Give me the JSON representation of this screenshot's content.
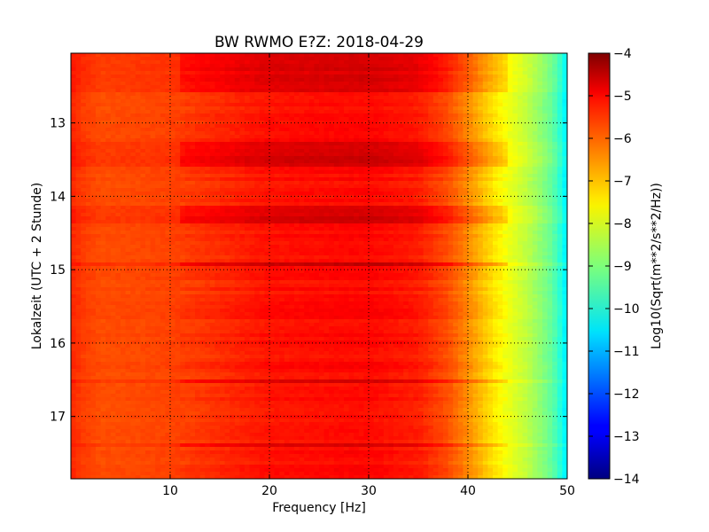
{
  "chart_data": {
    "type": "heatmap",
    "title": "BW RWMO E?Z: 2018-04-29",
    "xlabel": "Frequency [Hz]",
    "ylabel": "Lokalzeit (UTC + 2 Stunde)",
    "colorbar_label": "Log10(Sqrt(m**2/s**2/Hz))",
    "xlim": [
      0,
      50
    ],
    "ylim": [
      12.05,
      17.85
    ],
    "y_inverted": true,
    "colormap": "jet",
    "clim": [
      -14,
      -4
    ],
    "grid": true,
    "x_ticks": [
      10,
      20,
      30,
      40,
      50
    ],
    "x_tick_labels": [
      "10",
      "20",
      "30",
      "40",
      "50"
    ],
    "y_ticks": [
      13,
      14,
      15,
      16,
      17
    ],
    "y_tick_labels": [
      "13",
      "14",
      "15",
      "16",
      "17"
    ],
    "colorbar_ticks": [
      -4,
      -5,
      -6,
      -7,
      -8,
      -9,
      -10,
      -11,
      -12,
      -13,
      -14
    ],
    "colorbar_tick_labels": [
      "−4",
      "−5",
      "−6",
      "−7",
      "−8",
      "−9",
      "−10",
      "−11",
      "−12",
      "−13",
      "−14"
    ],
    "frequency_profile": {
      "frequency_hz": [
        0,
        1,
        3,
        10,
        20,
        30,
        35,
        38,
        40,
        42,
        44,
        46,
        48,
        49,
        50
      ],
      "log10_amplitude": [
        -5.6,
        -5.8,
        -6.0,
        -5.9,
        -5.4,
        -5.3,
        -5.5,
        -6.0,
        -6.6,
        -7.3,
        -7.9,
        -8.4,
        -9.1,
        -9.6,
        -10.5
      ]
    },
    "high_noise_periods": [
      {
        "start": 12.05,
        "end": 12.6,
        "log10_offset": 0.45
      },
      {
        "start": 13.25,
        "end": 13.6,
        "log10_offset": 0.5
      },
      {
        "start": 14.15,
        "end": 14.35,
        "log10_offset": 0.5
      },
      {
        "start": 14.9,
        "end": 14.97,
        "log10_offset": 0.6
      },
      {
        "start": 16.5,
        "end": 16.55,
        "log10_offset": 0.6
      },
      {
        "start": 17.35,
        "end": 17.4,
        "log10_offset": 0.5
      }
    ]
  }
}
